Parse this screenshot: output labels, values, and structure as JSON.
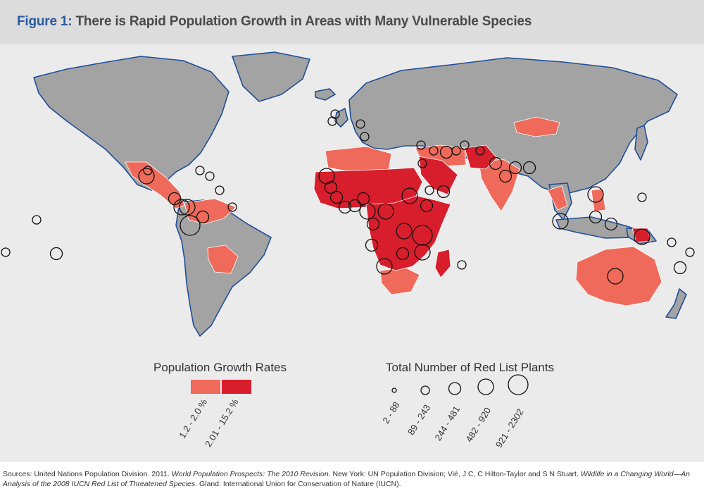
{
  "title": {
    "figure_label": "Figure 1:",
    "text": "There is Rapid Population Growth in Areas with Many Vulnerable Species"
  },
  "legend_growth": {
    "title": "Population Growth Rates",
    "items": [
      {
        "label": "1.2 - 2.0 %",
        "color": "#ef6a5a"
      },
      {
        "label": "2.01 - 15.2 %",
        "color": "#d81e2c"
      }
    ]
  },
  "legend_plants": {
    "title": "Total Number of Red List Plants",
    "items": [
      {
        "label": "2 - 88"
      },
      {
        "label": "89 - 243"
      },
      {
        "label": "244 - 481"
      },
      {
        "label": "482 - 920"
      },
      {
        "label": "921 - 2302"
      }
    ]
  },
  "colors": {
    "ocean": "#ebebeb",
    "land": "#a3a3a3",
    "coast": "#1f4f9a",
    "growth_low": "#ef6a5a",
    "growth_high": "#d81e2c"
  },
  "sources": {
    "s1": "Sources: United Nations Population Division. 2011. ",
    "s2": "World Population Prospects: The 2010 Revision",
    "s3": ". New York: UN Population Division; Vié, J C, C Hilton-Taylor and S N Stuart. ",
    "s4": "Wildlife in a Changing World—An Analysis of the 2008 IUCN Red List of Threatened Species",
    "s5": ". Gland: International Union for Conservation of Nature (IUCN)."
  }
}
